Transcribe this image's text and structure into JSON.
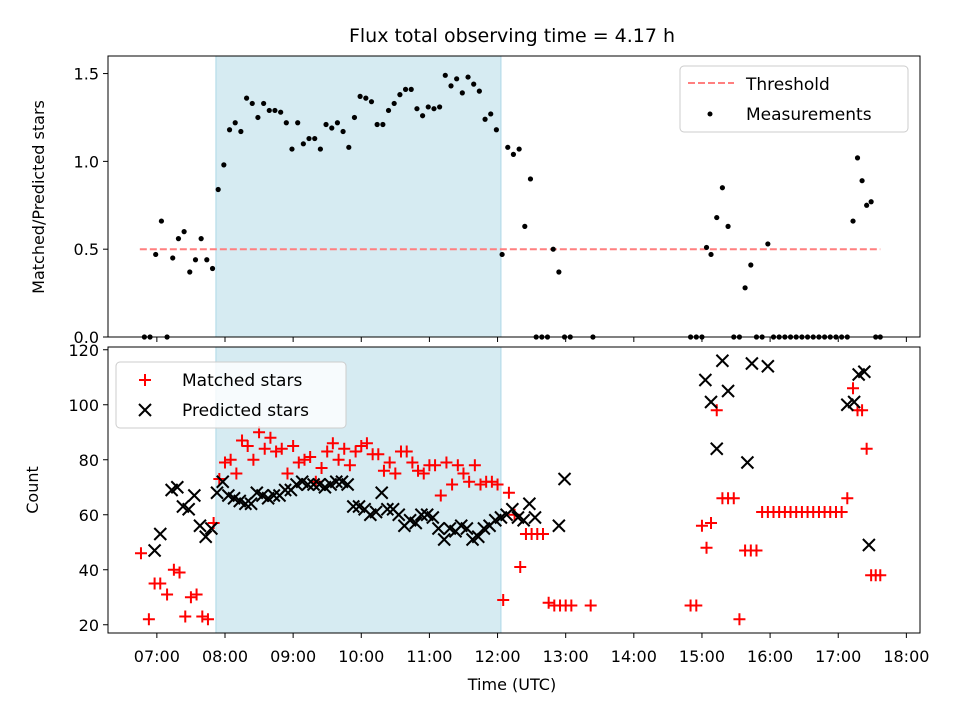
{
  "title": "Flux total observing time = 4.17 h",
  "colors": {
    "threshold": "#ff7f7f",
    "band": "#add8e6",
    "matched": "#ff0000",
    "predicted": "#000000",
    "measurement": "#000000"
  },
  "chart_data": [
    {
      "type": "scatter",
      "panel": "top",
      "ylabel": "Matched/Predicted stars",
      "xlim": [
        6.283,
        18.2
      ],
      "ylim": [
        0,
        1.6
      ],
      "yticks": [
        {
          "v": 0.0,
          "label": "0.0"
        },
        {
          "v": 0.5,
          "label": "0.5"
        },
        {
          "v": 1.0,
          "label": "1.0"
        },
        {
          "v": 1.5,
          "label": "1.5"
        }
      ],
      "legend": {
        "location": "upper right",
        "items": [
          "Threshold",
          "Measurements"
        ]
      },
      "observing_window": {
        "start": 7.867,
        "end": 12.05
      },
      "threshold": {
        "name": "Threshold",
        "y": 0.5,
        "x_start": 6.75,
        "x_end": 17.617
      },
      "measurements": {
        "name": "Measurements",
        "x": [
          6.817,
          6.9,
          6.983,
          7.067,
          7.15,
          7.233,
          7.317,
          7.4,
          7.483,
          7.567,
          7.65,
          7.733,
          7.817,
          7.9,
          7.983,
          8.067,
          8.15,
          8.233,
          8.317,
          8.4,
          8.483,
          8.567,
          8.65,
          8.733,
          8.817,
          8.9,
          8.983,
          9.067,
          9.15,
          9.233,
          9.317,
          9.4,
          9.483,
          9.567,
          9.65,
          9.733,
          9.817,
          9.9,
          9.983,
          10.067,
          10.15,
          10.233,
          10.317,
          10.4,
          10.483,
          10.567,
          10.65,
          10.733,
          10.817,
          10.9,
          10.983,
          11.067,
          11.15,
          11.233,
          11.317,
          11.4,
          11.483,
          11.567,
          11.65,
          11.733,
          11.817,
          11.9,
          11.983,
          12.067,
          12.15,
          12.233,
          12.317,
          12.4,
          12.483,
          12.567,
          12.65,
          12.733,
          12.817,
          12.9,
          12.983,
          13.067,
          13.4,
          14.833,
          14.917,
          15.0,
          15.067,
          15.133,
          15.217,
          15.3,
          15.383,
          15.467,
          15.55,
          15.633,
          15.717,
          15.8,
          15.883,
          15.967,
          16.05,
          16.133,
          16.217,
          16.3,
          16.383,
          16.467,
          16.55,
          16.633,
          16.717,
          16.8,
          16.883,
          16.967,
          17.05,
          17.133,
          17.217,
          17.283,
          17.35,
          17.417,
          17.483,
          17.55,
          17.617
        ],
        "y": [
          0.0,
          0.0,
          0.47,
          0.66,
          0.0,
          0.45,
          0.56,
          0.6,
          0.37,
          0.44,
          0.56,
          0.44,
          0.39,
          0.84,
          0.98,
          1.18,
          1.22,
          1.17,
          1.36,
          1.33,
          1.25,
          1.33,
          1.29,
          1.29,
          1.28,
          1.22,
          1.07,
          1.22,
          1.1,
          1.13,
          1.13,
          1.07,
          1.21,
          1.19,
          1.22,
          1.17,
          1.08,
          1.25,
          1.37,
          1.36,
          1.34,
          1.21,
          1.21,
          1.29,
          1.33,
          1.38,
          1.41,
          1.41,
          1.3,
          1.26,
          1.31,
          1.3,
          1.31,
          1.49,
          1.43,
          1.47,
          1.39,
          1.48,
          1.44,
          1.4,
          1.24,
          1.27,
          1.18,
          0.47,
          1.08,
          1.04,
          1.07,
          0.63,
          0.9,
          0.0,
          0.0,
          0.0,
          0.5,
          0.37,
          0.0,
          0.0,
          0.0,
          0.0,
          0.0,
          0.0,
          0.51,
          0.47,
          0.68,
          0.85,
          0.63,
          0.0,
          0.0,
          0.28,
          0.41,
          0.0,
          0.0,
          0.53,
          0.0,
          0.0,
          0.0,
          0.0,
          0.0,
          0.0,
          0.0,
          0.0,
          0.0,
          0.0,
          0.0,
          0.0,
          0.0,
          0.0,
          0.66,
          1.02,
          0.89,
          0.75,
          0.77,
          0.0,
          0.0
        ]
      }
    },
    {
      "type": "scatter",
      "panel": "bottom",
      "xlabel": "Time (UTC)",
      "ylabel": "Count",
      "xlim": [
        6.283,
        18.2
      ],
      "ylim": [
        17,
        121
      ],
      "xticks": [
        {
          "v": 7,
          "label": "07:00"
        },
        {
          "v": 8,
          "label": "08:00"
        },
        {
          "v": 9,
          "label": "09:00"
        },
        {
          "v": 10,
          "label": "10:00"
        },
        {
          "v": 11,
          "label": "11:00"
        },
        {
          "v": 12,
          "label": "12:00"
        },
        {
          "v": 13,
          "label": "13:00"
        },
        {
          "v": 14,
          "label": "14:00"
        },
        {
          "v": 15,
          "label": "15:00"
        },
        {
          "v": 16,
          "label": "16:00"
        },
        {
          "v": 17,
          "label": "17:00"
        },
        {
          "v": 18,
          "label": "18:00"
        }
      ],
      "yticks": [
        {
          "v": 20,
          "label": "20"
        },
        {
          "v": 40,
          "label": "40"
        },
        {
          "v": 60,
          "label": "60"
        },
        {
          "v": 80,
          "label": "80"
        },
        {
          "v": 100,
          "label": "100"
        },
        {
          "v": 120,
          "label": "120"
        }
      ],
      "legend": {
        "location": "upper left",
        "items": [
          "Matched stars",
          "Predicted stars"
        ]
      },
      "observing_window": {
        "start": 7.867,
        "end": 12.05
      },
      "series": [
        {
          "name": "Matched stars",
          "marker": "plus",
          "x": [
            6.767,
            6.883,
            6.967,
            7.05,
            7.15,
            7.25,
            7.333,
            7.417,
            7.5,
            7.583,
            7.667,
            7.75,
            7.833,
            7.917,
            8.0,
            8.083,
            8.167,
            8.25,
            8.333,
            8.417,
            8.5,
            8.583,
            8.667,
            8.75,
            8.833,
            8.917,
            9.0,
            9.083,
            9.167,
            9.25,
            9.333,
            9.417,
            9.5,
            9.583,
            9.667,
            9.75,
            9.833,
            9.917,
            10.0,
            10.083,
            10.167,
            10.25,
            10.333,
            10.417,
            10.5,
            10.583,
            10.667,
            10.75,
            10.833,
            10.917,
            11.0,
            11.083,
            11.167,
            11.25,
            11.333,
            11.417,
            11.5,
            11.583,
            11.667,
            11.75,
            11.833,
            11.917,
            12.0,
            12.083,
            12.167,
            12.25,
            12.333,
            12.417,
            12.5,
            12.583,
            12.667,
            12.75,
            12.833,
            12.917,
            13.0,
            13.083,
            13.367,
            14.833,
            14.917,
            15.0,
            15.067,
            15.133,
            15.217,
            15.3,
            15.383,
            15.467,
            15.55,
            15.633,
            15.717,
            15.8,
            15.883,
            15.967,
            16.05,
            16.133,
            16.217,
            16.3,
            16.383,
            16.467,
            16.55,
            16.633,
            16.717,
            16.8,
            16.883,
            16.967,
            17.05,
            17.133,
            17.217,
            17.283,
            17.35,
            17.417,
            17.483,
            17.55,
            17.617
          ],
          "y": [
            46,
            22,
            35,
            35,
            31,
            40,
            39,
            23,
            30,
            31,
            23,
            22,
            57,
            73,
            79,
            80,
            75,
            87,
            85,
            80,
            90,
            84,
            88,
            83,
            84,
            75,
            85,
            79,
            80,
            81,
            72,
            77,
            83,
            86,
            80,
            84,
            78,
            83,
            85,
            86,
            82,
            82,
            76,
            79,
            75,
            83,
            83,
            79,
            76,
            75,
            78,
            78,
            67,
            79,
            71,
            78,
            75,
            72,
            78,
            71,
            72,
            72,
            71,
            29,
            68,
            60,
            41,
            53,
            53,
            53,
            53,
            28,
            27,
            27,
            27,
            27,
            27,
            27,
            27,
            56,
            48,
            57,
            98,
            66,
            66,
            66,
            22,
            47,
            47,
            47,
            61,
            61,
            61,
            61,
            61,
            61,
            61,
            61,
            61,
            61,
            61,
            61,
            61,
            61,
            61,
            66,
            106,
            98,
            98,
            84,
            38,
            38,
            38
          ]
        },
        {
          "name": "Predicted stars",
          "marker": "x",
          "x": [
            6.967,
            7.05,
            7.217,
            7.3,
            7.383,
            7.467,
            7.55,
            7.633,
            7.717,
            7.8,
            7.883,
            7.967,
            8.05,
            8.133,
            8.217,
            8.3,
            8.383,
            8.467,
            8.55,
            8.633,
            8.717,
            8.8,
            8.883,
            8.967,
            9.05,
            9.133,
            9.217,
            9.3,
            9.383,
            9.467,
            9.55,
            9.633,
            9.717,
            9.8,
            9.883,
            9.967,
            10.05,
            10.133,
            10.217,
            10.3,
            10.383,
            10.467,
            10.55,
            10.633,
            10.717,
            10.8,
            10.883,
            10.967,
            11.05,
            11.133,
            11.217,
            11.3,
            11.383,
            11.467,
            11.55,
            11.633,
            11.717,
            11.8,
            11.883,
            11.967,
            12.05,
            12.133,
            12.217,
            12.3,
            12.383,
            12.467,
            12.55,
            12.9,
            12.983,
            15.05,
            15.133,
            15.217,
            15.3,
            15.383,
            15.667,
            15.733,
            15.967,
            17.133,
            17.233,
            17.3,
            17.383,
            17.45
          ],
          "y": [
            47,
            53,
            69,
            70,
            63,
            62,
            67,
            56,
            52,
            55,
            68,
            72,
            67,
            66,
            65,
            64,
            64,
            68,
            67,
            66,
            67,
            67,
            69,
            69,
            71,
            72,
            71,
            71,
            71,
            70,
            71,
            72,
            72,
            71,
            63,
            63,
            62,
            60,
            61,
            68,
            62,
            62,
            60,
            56,
            58,
            57,
            60,
            60,
            59,
            55,
            51,
            55,
            54,
            56,
            55,
            51,
            52,
            55,
            56,
            58,
            59,
            60,
            62,
            59,
            58,
            64,
            59,
            56,
            73,
            109,
            101,
            84,
            116,
            105,
            79,
            115,
            114,
            100,
            101,
            111,
            112,
            49
          ]
        }
      ]
    }
  ]
}
